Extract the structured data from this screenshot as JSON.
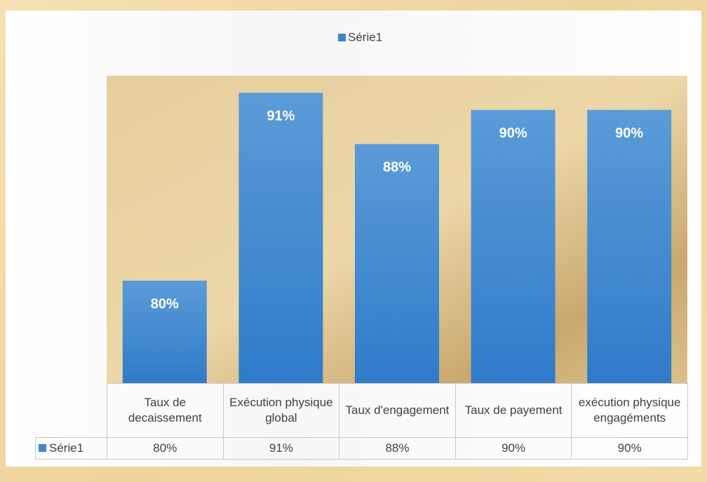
{
  "chart_data": {
    "type": "bar",
    "categories": [
      "Taux de decaissement",
      "Exécution physique global",
      "Taux d'engagement",
      "Taux de payement",
      "exécution physique engagéments"
    ],
    "series": [
      {
        "name": "Série1",
        "color": "#3d85cf",
        "values": [
          80,
          91,
          88,
          90,
          90
        ],
        "value_labels": [
          "80%",
          "91%",
          "88%",
          "90%",
          "90%"
        ]
      }
    ],
    "ylim": [
      74,
      92
    ],
    "legend": "top",
    "data_table": true
  }
}
